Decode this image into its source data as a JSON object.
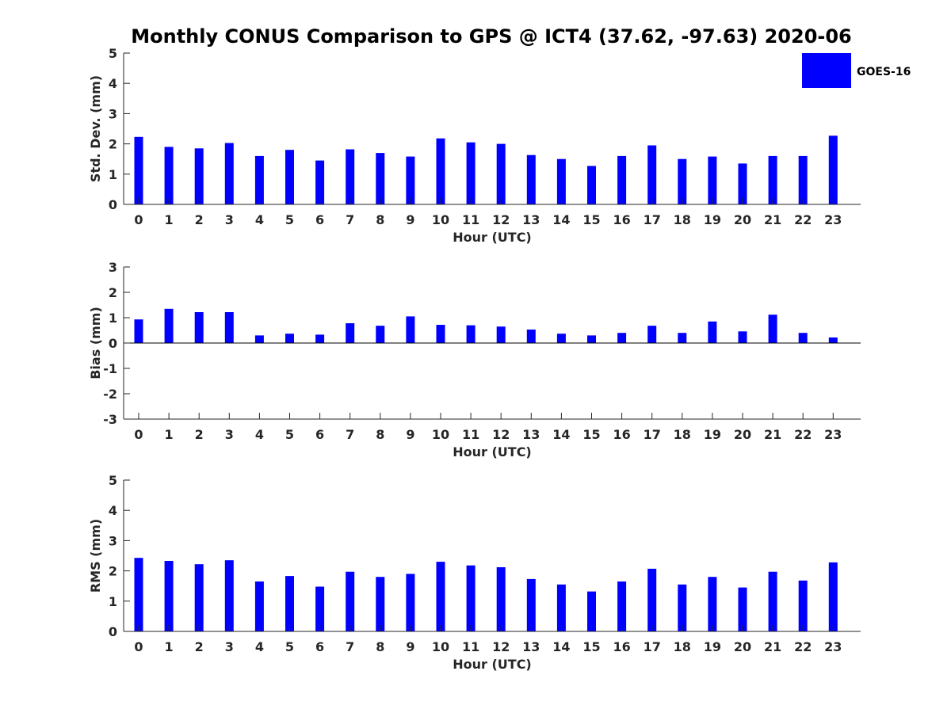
{
  "chart_data": {
    "type": "bar",
    "title": "Monthly CONUS Comparison to GPS @ ICT4 (37.62, -97.63) 2020-06",
    "legend": {
      "label": "GOES-16",
      "color": "#0000ff",
      "placement": "top-right"
    },
    "categories": [
      "0",
      "1",
      "2",
      "3",
      "4",
      "5",
      "6",
      "7",
      "8",
      "9",
      "10",
      "11",
      "12",
      "13",
      "14",
      "15",
      "16",
      "17",
      "18",
      "19",
      "20",
      "21",
      "22",
      "23"
    ],
    "panels": [
      {
        "id": "std",
        "ylabel": "Std. Dev. (mm)",
        "xlabel": "Hour (UTC)",
        "ylim": [
          0,
          5
        ],
        "yticks": [
          "0",
          "1",
          "2",
          "3",
          "4",
          "5"
        ],
        "series": [
          {
            "name": "GOES-16",
            "values": [
              2.23,
              1.9,
              1.85,
              2.03,
              1.6,
              1.8,
              1.45,
              1.82,
              1.7,
              1.58,
              2.18,
              2.05,
              2.0,
              1.63,
              1.5,
              1.27,
              1.6,
              1.95,
              1.5,
              1.58,
              1.35,
              1.6,
              1.6,
              2.27
            ]
          }
        ]
      },
      {
        "id": "bias",
        "ylabel": "Bias (mm)",
        "xlabel": "Hour (UTC)",
        "ylim": [
          -3,
          3
        ],
        "yticks": [
          "-3",
          "-2",
          "-1",
          "0",
          "1",
          "2",
          "3"
        ],
        "series": [
          {
            "name": "GOES-16",
            "values": [
              0.93,
              1.35,
              1.22,
              1.22,
              0.3,
              0.37,
              0.33,
              0.78,
              0.68,
              1.05,
              0.72,
              0.7,
              0.65,
              0.53,
              0.37,
              0.3,
              0.4,
              0.68,
              0.4,
              0.85,
              0.46,
              1.12,
              0.4,
              0.22
            ]
          }
        ]
      },
      {
        "id": "rms",
        "ylabel": "RMS (mm)",
        "xlabel": "Hour (UTC)",
        "ylim": [
          0,
          5
        ],
        "yticks": [
          "0",
          "1",
          "2",
          "3",
          "4",
          "5"
        ],
        "series": [
          {
            "name": "GOES-16",
            "values": [
              2.43,
              2.33,
              2.22,
              2.35,
              1.65,
              1.83,
              1.48,
              1.97,
              1.8,
              1.9,
              2.3,
              2.18,
              2.12,
              1.73,
              1.55,
              1.32,
              1.65,
              2.07,
              1.55,
              1.8,
              1.45,
              1.97,
              1.68,
              2.28
            ]
          }
        ]
      }
    ]
  }
}
